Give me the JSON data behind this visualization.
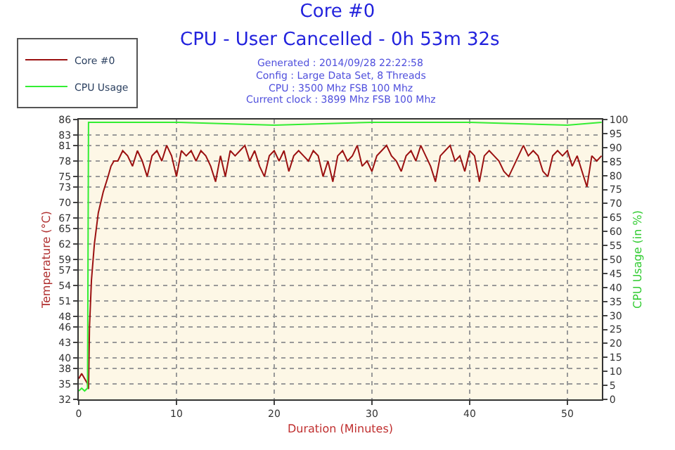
{
  "chart_data": {
    "type": "line",
    "title": "Core #0",
    "subtitle": "CPU - User Cancelled - 0h 53m 32s",
    "annotations": [
      "Generated : 2014/09/28 22:22:58",
      "Config : Large Data Set, 8 Threads",
      "CPU : 3500 Mhz FSB 100 Mhz",
      "Current clock : 3899 Mhz FSB 100 Mhz"
    ],
    "xlabel": "Duration (Minutes)",
    "ylabel": "Temperature (°C)",
    "y2label": "CPU Usage (in %)",
    "xlim": [
      0,
      53.53
    ],
    "xticks": [
      0,
      10,
      20,
      30,
      40,
      50
    ],
    "ylim": [
      32,
      86
    ],
    "yticks": [
      32,
      35,
      38,
      40,
      43,
      46,
      48,
      51,
      54,
      57,
      59,
      62,
      65,
      67,
      70,
      73,
      75,
      78,
      81,
      83,
      86
    ],
    "y2lim": [
      0,
      100
    ],
    "y2ticks": [
      0,
      5,
      10,
      15,
      20,
      25,
      30,
      35,
      40,
      45,
      50,
      55,
      60,
      65,
      70,
      75,
      80,
      85,
      90,
      95,
      100
    ],
    "grid": true,
    "legend": "top left",
    "marker": "none",
    "line_style": "solid",
    "series": [
      {
        "name": "Core #0",
        "color": "#9b1111",
        "x": [
          0,
          0.3,
          0.6,
          0.9,
          1.0,
          1.1,
          1.3,
          1.6,
          2.0,
          2.5,
          3.0,
          3.3,
          3.6,
          4,
          4.5,
          5,
          5.5,
          6,
          6.5,
          7,
          7.5,
          8,
          8.5,
          9,
          9.5,
          10,
          10.5,
          11,
          11.5,
          12,
          12.5,
          13,
          13.5,
          14,
          14.5,
          15,
          15.5,
          16,
          16.5,
          17,
          17.5,
          18,
          18.5,
          19,
          19.5,
          20,
          20.5,
          21,
          21.5,
          22,
          22.5,
          23,
          23.5,
          24,
          24.5,
          25,
          25.5,
          26,
          26.5,
          27,
          27.5,
          28,
          28.5,
          29,
          29.5,
          30,
          30.5,
          31,
          31.5,
          32,
          32.5,
          33,
          33.5,
          34,
          34.5,
          35,
          35.5,
          36,
          36.5,
          37,
          37.5,
          38,
          38.5,
          39,
          39.5,
          40,
          40.5,
          41,
          41.5,
          42,
          42.5,
          43,
          43.5,
          44,
          44.5,
          45,
          45.5,
          46,
          46.5,
          47,
          47.5,
          48,
          48.5,
          49,
          49.5,
          50,
          50.5,
          51,
          51.5,
          52,
          52.5,
          53,
          53.5
        ],
        "values": [
          36,
          37,
          36,
          35,
          34,
          46,
          55,
          62,
          68,
          72,
          75,
          77,
          78,
          78,
          80,
          79,
          77,
          80,
          78,
          75,
          79,
          80,
          78,
          81,
          79,
          75,
          80,
          79,
          80,
          78,
          80,
          79,
          77,
          74,
          79,
          75,
          80,
          79,
          80,
          81,
          78,
          80,
          77,
          75,
          79,
          80,
          78,
          80,
          76,
          79,
          80,
          79,
          78,
          80,
          79,
          75,
          78,
          74,
          79,
          80,
          78,
          79,
          81,
          77,
          78,
          76,
          79,
          80,
          81,
          79,
          78,
          76,
          79,
          80,
          78,
          81,
          79,
          77,
          74,
          79,
          80,
          81,
          78,
          79,
          76,
          80,
          79,
          74,
          79,
          80,
          79,
          78,
          76,
          75,
          77,
          79,
          81,
          79,
          80,
          79,
          76,
          75,
          79,
          80,
          79,
          80,
          77,
          79,
          76,
          73,
          79,
          78,
          79
        ]
      },
      {
        "name": "CPU Usage",
        "color": "#33ee33",
        "axis": "y2",
        "x": [
          0,
          0.3,
          0.6,
          0.9,
          1.0,
          10,
          20,
          30,
          40,
          50,
          53.5
        ],
        "values": [
          3,
          4,
          3,
          4,
          99,
          99,
          98,
          99,
          99,
          98,
          99
        ]
      }
    ]
  }
}
